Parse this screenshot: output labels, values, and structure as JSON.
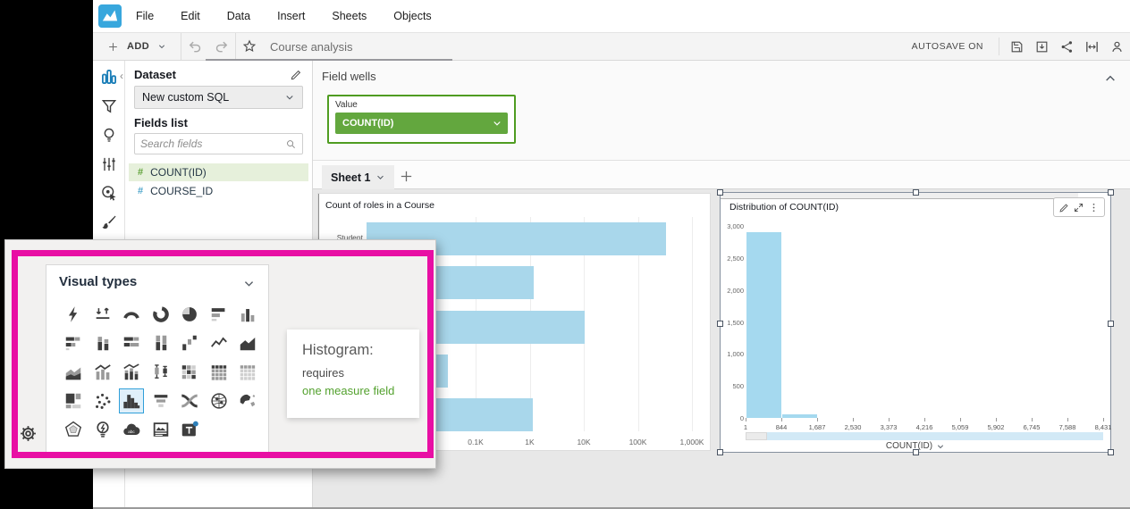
{
  "menu_bar": {
    "items": [
      "File",
      "Edit",
      "Data",
      "Insert",
      "Sheets",
      "Objects"
    ]
  },
  "toolbar": {
    "add_label": "ADD",
    "analysis_title": "Course analysis",
    "autosave_label": "AUTOSAVE ON"
  },
  "left_rail": {
    "icons": [
      "visualize",
      "filter",
      "insights",
      "parameters",
      "actions",
      "themes"
    ],
    "selected": "visualize"
  },
  "dataset_panel": {
    "title": "Dataset",
    "dataset_value": "New custom SQL",
    "fields_list_label": "Fields list",
    "search_placeholder": "Search fields",
    "fields": [
      {
        "name": "COUNT(ID)",
        "type": "measure",
        "selected": true
      },
      {
        "name": "COURSE_ID",
        "type": "dimension",
        "selected": false
      }
    ]
  },
  "field_wells": {
    "title": "Field wells",
    "wells": [
      {
        "label": "Value",
        "value": "COUNT(ID)"
      }
    ]
  },
  "sheet_bar": {
    "tabs": [
      "Sheet 1"
    ]
  },
  "visual_types": {
    "title": "Visual types",
    "selected": "histogram",
    "icons": [
      "autograph",
      "kpi",
      "gauge",
      "donut-chart",
      "pie-chart",
      "horizontal-bar",
      "vertical-bar",
      "horizontal-stacked-bar",
      "vertical-stacked-bar",
      "horizontal-100-stacked-bar",
      "vertical-100-stacked-bar",
      "waterfall",
      "line-chart",
      "area-line-chart",
      "stacked-area-chart",
      "combo-bar-line",
      "stacked-combo-bar-line",
      "box-plot",
      "heat-map",
      "pivot-table",
      "table",
      "tree-map",
      "scatter-plot",
      "histogram",
      "funnel",
      "sankey",
      "points-on-map",
      "filled-map",
      "radar-chart",
      "insights",
      "word-cloud",
      "custom-visual",
      "text-box"
    ]
  },
  "tooltip": {
    "title": "Histogram:",
    "line1": "requires",
    "line2": "one measure field"
  },
  "chart_data": [
    {
      "type": "bar",
      "orientation": "horizontal",
      "title": "Count of roles in a Course",
      "categories": [
        "Student",
        "",
        "",
        "",
        ""
      ],
      "values": [
        320000,
        1150,
        10000,
        30,
        1080
      ],
      "x_scale": "log",
      "x_ticks": [
        "0.1K",
        "1K",
        "10K",
        "100K",
        "1,000K"
      ],
      "bar_color": "#a9d7eb"
    },
    {
      "type": "histogram",
      "title": "Distribution of COUNT(ID)",
      "xlabel": "COUNT(ID)",
      "x_ticks": [
        "1",
        "844",
        "1,687",
        "2,530",
        "3,373",
        "4,216",
        "5,059",
        "5,902",
        "6,745",
        "7,588",
        "8,431"
      ],
      "y_ticks": [
        "3,000",
        "2,500",
        "2,000",
        "1,500",
        "1,000",
        "500",
        "0"
      ],
      "ylim": [
        0,
        3000
      ],
      "bin_counts": [
        2900,
        55,
        0,
        0,
        0,
        0,
        0,
        0,
        0,
        0
      ],
      "bar_color": "#a5d9ef"
    }
  ],
  "colors": {
    "accent_green": "#4f9c21",
    "pill_green": "#63a73e",
    "highlight_magenta": "#e80fa4",
    "bar_blue": "#a9d7eb",
    "selected_icon_blue": "#2f9fd9",
    "logo_blue": "#38a7dd"
  }
}
